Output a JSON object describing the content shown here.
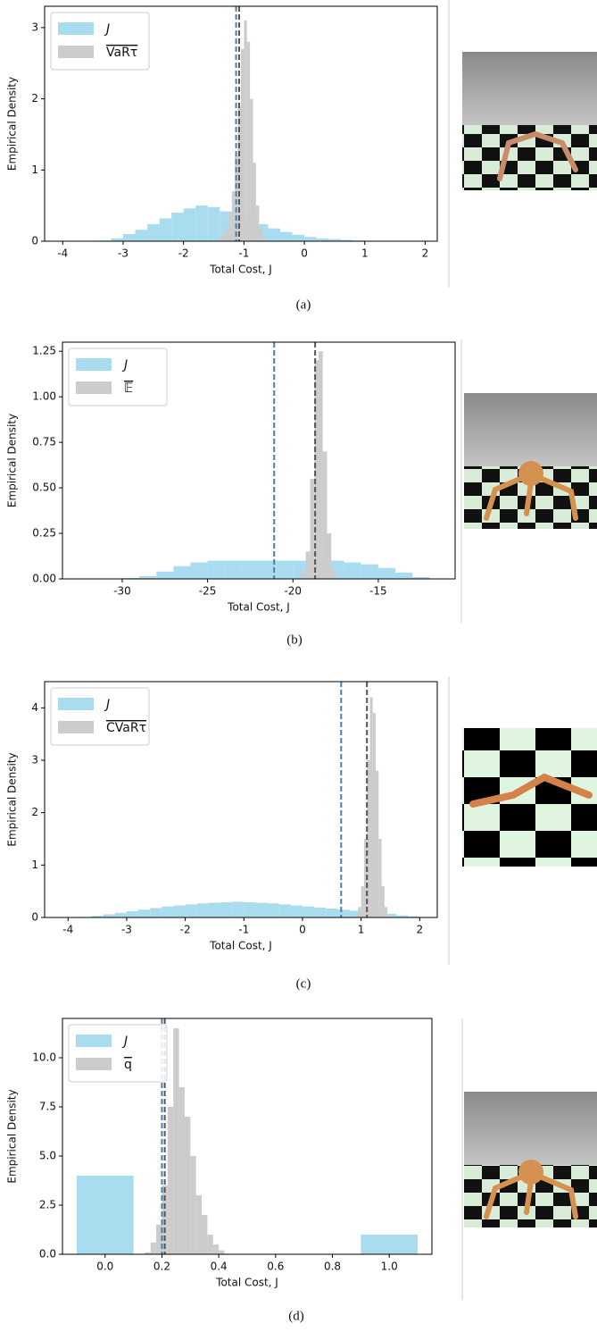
{
  "chart_data": [
    {
      "type": "histogram",
      "caption": "(a)",
      "xlabel": "Total Cost, J",
      "ylabel": "Empirical Density",
      "xlim": [
        -4.3,
        2.2
      ],
      "xticks": [
        -4,
        -3,
        -2,
        -1,
        0,
        1,
        2
      ],
      "ylim": [
        0,
        3.3
      ],
      "yticks": [
        0,
        1,
        2,
        3
      ],
      "legend": "upper left",
      "series": [
        {
          "name": "J",
          "color": "#a9dcef",
          "bins": [
            -3.4,
            -3.2,
            -3.0,
            -2.8,
            -2.6,
            -2.4,
            -2.2,
            -2.0,
            -1.8,
            -1.6,
            -1.4,
            -1.2,
            -1.0,
            -0.8,
            -0.6,
            -0.4,
            -0.2,
            0.0,
            0.2,
            0.4,
            0.6,
            0.8,
            1.0,
            1.2
          ],
          "values": [
            0.01,
            0.04,
            0.1,
            0.16,
            0.24,
            0.32,
            0.4,
            0.46,
            0.5,
            0.48,
            0.42,
            0.36,
            0.3,
            0.24,
            0.18,
            0.13,
            0.09,
            0.06,
            0.04,
            0.03,
            0.02,
            0.01,
            0.005
          ]
        },
        {
          "name": "VaRτ",
          "color": "#cccccc",
          "bins": [
            -1.4,
            -1.35,
            -1.3,
            -1.25,
            -1.2,
            -1.15,
            -1.1,
            -1.05,
            -1.0,
            -0.95,
            -0.9,
            -0.85,
            -0.8,
            -0.75,
            -0.7,
            -0.65
          ],
          "values": [
            0.05,
            0.1,
            0.2,
            0.4,
            0.7,
            1.2,
            1.9,
            2.7,
            3.1,
            2.8,
            2.0,
            1.1,
            0.5,
            0.2,
            0.05
          ]
        }
      ],
      "reference_lines": [
        {
          "value": -1.13,
          "color": "#4a7fad"
        },
        {
          "value": -1.08,
          "color": "#555555"
        }
      ]
    },
    {
      "type": "histogram",
      "caption": "(b)",
      "xlabel": "Total Cost, J",
      "ylabel": "Empirical Density",
      "xlim": [
        -33.5,
        -10.5
      ],
      "xticks": [
        -30,
        -25,
        -20,
        -15
      ],
      "ylim": [
        0,
        1.3
      ],
      "yticks": [
        {
          "value": 0,
          "label": "0.00"
        },
        {
          "value": 0.25,
          "label": "0.25"
        },
        {
          "value": 0.5,
          "label": "0.50"
        },
        {
          "value": 0.75,
          "label": "0.75"
        },
        {
          "value": 1,
          "label": "1.00"
        },
        {
          "value": 1.25,
          "label": "1.25"
        }
      ],
      "legend": "upper left",
      "series": [
        {
          "name": "J",
          "color": "#a9dcef",
          "bins": [
            -31,
            -30,
            -29,
            -28,
            -27,
            -26,
            -25,
            -24,
            -23,
            -22,
            -21,
            -20,
            -19,
            -18,
            -17,
            -16,
            -15,
            -14,
            -13,
            -12
          ],
          "values": [
            0.002,
            0.005,
            0.015,
            0.04,
            0.07,
            0.09,
            0.1,
            0.1,
            0.1,
            0.1,
            0.1,
            0.1,
            0.1,
            0.1,
            0.09,
            0.08,
            0.06,
            0.035,
            0.01
          ]
        },
        {
          "name": "𝔼",
          "color": "#cccccc",
          "bins": [
            -19.5,
            -19.25,
            -19,
            -18.75,
            -18.5,
            -18.25,
            -18,
            -17.75,
            -17.5
          ],
          "values": [
            0.03,
            0.15,
            0.55,
            1.2,
            1.25,
            0.7,
            0.25,
            0.05
          ]
        }
      ],
      "reference_lines": [
        {
          "value": -21.1,
          "color": "#4a7fad"
        },
        {
          "value": -18.7,
          "color": "#555555"
        }
      ]
    },
    {
      "type": "histogram",
      "caption": "(c)",
      "xlabel": "Total Cost, J",
      "ylabel": "Empirical Density",
      "xlim": [
        -4.4,
        2.3
      ],
      "xticks": [
        -4,
        -3,
        -2,
        -1,
        0,
        1,
        2
      ],
      "ylim": [
        0,
        4.5
      ],
      "yticks": [
        0,
        1,
        2,
        3,
        4
      ],
      "legend": "upper left",
      "series": [
        {
          "name": "J",
          "color": "#a9dcef",
          "bins": [
            -4,
            -3.8,
            -3.6,
            -3.4,
            -3.2,
            -3,
            -2.8,
            -2.6,
            -2.4,
            -2.2,
            -2,
            -1.8,
            -1.6,
            -1.4,
            -1.2,
            -1,
            -0.8,
            -0.6,
            -0.4,
            -0.2,
            0,
            0.2,
            0.4,
            0.6,
            0.8,
            1,
            1.2,
            1.4,
            1.6,
            1.8,
            2
          ],
          "values": [
            0.005,
            0.01,
            0.03,
            0.06,
            0.09,
            0.12,
            0.15,
            0.18,
            0.21,
            0.23,
            0.25,
            0.27,
            0.28,
            0.29,
            0.3,
            0.29,
            0.28,
            0.27,
            0.25,
            0.23,
            0.21,
            0.19,
            0.17,
            0.15,
            0.13,
            0.11,
            0.09,
            0.07,
            0.04,
            0.02
          ]
        },
        {
          "name": "CVaRτ",
          "color": "#cccccc",
          "bins": [
            0.9,
            0.95,
            1,
            1.05,
            1.1,
            1.15,
            1.2,
            1.25,
            1.3,
            1.35,
            1.4,
            1.45,
            1.5
          ],
          "values": [
            0.05,
            0.2,
            0.6,
            1.5,
            3.0,
            4.2,
            3.9,
            2.8,
            1.5,
            0.6,
            0.2,
            0.05
          ]
        }
      ],
      "reference_lines": [
        {
          "value": 0.66,
          "color": "#4a7fad"
        },
        {
          "value": 1.1,
          "color": "#555555"
        }
      ]
    },
    {
      "type": "histogram",
      "caption": "(d)",
      "xlabel": "Total Cost, J",
      "ylabel": "Empirical Density",
      "xlim": [
        -0.15,
        1.15
      ],
      "xticks": [
        {
          "value": 0,
          "label": "0.0"
        },
        {
          "value": 0.2,
          "label": "0.2"
        },
        {
          "value": 0.4,
          "label": "0.4"
        },
        {
          "value": 0.6,
          "label": "0.6"
        },
        {
          "value": 0.8,
          "label": "0.8"
        },
        {
          "value": 1,
          "label": "1.0"
        }
      ],
      "ylim": [
        0,
        12
      ],
      "yticks": [
        {
          "value": 0,
          "label": "0.0"
        },
        {
          "value": 2.5,
          "label": "2.5"
        },
        {
          "value": 5,
          "label": "5.0"
        },
        {
          "value": 7.5,
          "label": "7.5"
        },
        {
          "value": 10,
          "label": "10.0"
        }
      ],
      "legend": "upper left",
      "series": [
        {
          "name": "J",
          "color": "#a9dcef",
          "bins": [
            -0.1,
            0.1,
            0.9,
            1.1
          ],
          "values": [
            4,
            0,
            1
          ]
        },
        {
          "name": "q",
          "color": "#cccccc",
          "bins": [
            0.14,
            0.16,
            0.18,
            0.2,
            0.22,
            0.24,
            0.26,
            0.28,
            0.3,
            0.32,
            0.34,
            0.36,
            0.38,
            0.4,
            0.42
          ],
          "values": [
            0.1,
            0.6,
            1.5,
            3.5,
            7.5,
            11.5,
            8.5,
            7,
            5,
            3,
            2,
            1,
            0.5,
            0.2
          ]
        }
      ],
      "reference_lines": [
        {
          "value": 0.2,
          "color": "#4a7fad"
        },
        {
          "value": 0.21,
          "color": "#555555"
        }
      ]
    }
  ]
}
